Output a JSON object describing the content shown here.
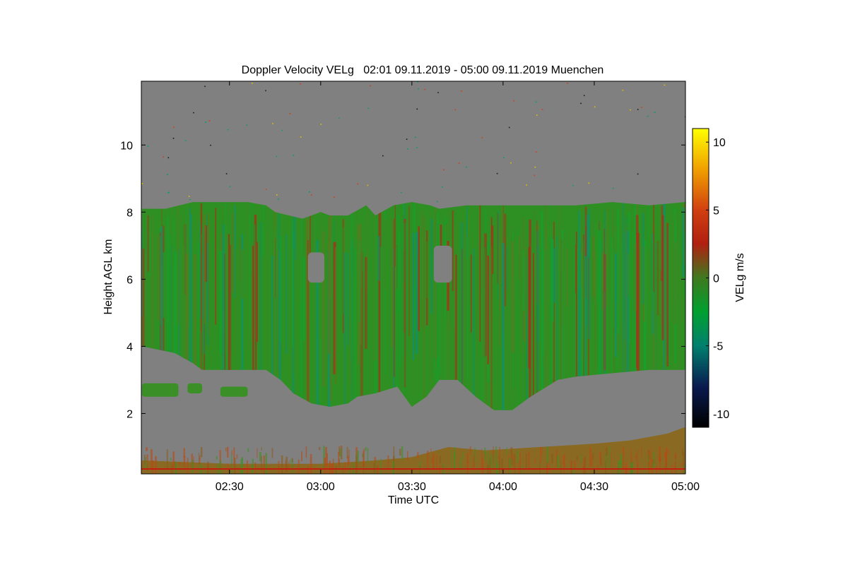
{
  "chart_data": {
    "type": "heatmap",
    "title": "Doppler Velocity VELg   02:01 09.11.2019 - 05:00 09.11.2019 Muenchen",
    "xlabel": "Time UTC",
    "ylabel": "Height AGL km",
    "xlim_hours": [
      2.0167,
      5.0
    ],
    "ylim_km": [
      0.2,
      11.9
    ],
    "x_ticks": [
      {
        "value": 2.5,
        "label": "02:30"
      },
      {
        "value": 3.0,
        "label": "03:00"
      },
      {
        "value": 3.5,
        "label": "03:30"
      },
      {
        "value": 4.0,
        "label": "04:00"
      },
      {
        "value": 4.5,
        "label": "04:30"
      },
      {
        "value": 5.0,
        "label": "05:00"
      }
    ],
    "y_ticks": [
      {
        "value": 2,
        "label": "2"
      },
      {
        "value": 4,
        "label": "4"
      },
      {
        "value": 6,
        "label": "6"
      },
      {
        "value": 8,
        "label": "8"
      },
      {
        "value": 10,
        "label": "10"
      }
    ],
    "background_color": "#808080",
    "colorbar": {
      "label": "VELg m/s",
      "range": [
        -11,
        11
      ],
      "ticks": [
        {
          "value": 10,
          "label": "10"
        },
        {
          "value": 5,
          "label": "5"
        },
        {
          "value": 0,
          "label": "0"
        },
        {
          "value": -5,
          "label": "-5"
        },
        {
          "value": -10,
          "label": "-10"
        }
      ],
      "stops": [
        {
          "value": -11,
          "color": "#000000"
        },
        {
          "value": -8,
          "color": "#0a1a50"
        },
        {
          "value": -5,
          "color": "#00806e"
        },
        {
          "value": -2.5,
          "color": "#00a030"
        },
        {
          "value": 0,
          "color": "#3f7a1e"
        },
        {
          "value": 2.5,
          "color": "#b02010"
        },
        {
          "value": 5,
          "color": "#d04010"
        },
        {
          "value": 8,
          "color": "#f0a000"
        },
        {
          "value": 11,
          "color": "#ffff00"
        }
      ]
    },
    "cloud_top_km": [
      [
        2.02,
        8.1
      ],
      [
        2.15,
        8.1
      ],
      [
        2.3,
        8.3
      ],
      [
        2.4,
        8.3
      ],
      [
        2.5,
        8.3
      ],
      [
        2.6,
        8.3
      ],
      [
        2.7,
        8.2
      ],
      [
        2.75,
        8.0
      ],
      [
        2.9,
        7.8
      ],
      [
        3.0,
        8.0
      ],
      [
        3.05,
        7.9
      ],
      [
        3.15,
        7.9
      ],
      [
        3.25,
        8.2
      ],
      [
        3.3,
        7.9
      ],
      [
        3.4,
        8.2
      ],
      [
        3.5,
        8.3
      ],
      [
        3.6,
        8.2
      ],
      [
        3.65,
        8.1
      ],
      [
        3.8,
        8.2
      ],
      [
        4.0,
        8.2
      ],
      [
        4.2,
        8.2
      ],
      [
        4.4,
        8.2
      ],
      [
        4.6,
        8.3
      ],
      [
        4.8,
        8.2
      ],
      [
        5.0,
        8.3
      ]
    ],
    "cloud_base_km": [
      [
        2.02,
        4.0
      ],
      [
        2.2,
        3.8
      ],
      [
        2.3,
        3.5
      ],
      [
        2.35,
        3.3
      ],
      [
        2.5,
        3.3
      ],
      [
        2.7,
        3.3
      ],
      [
        2.78,
        3.0
      ],
      [
        2.85,
        2.6
      ],
      [
        2.95,
        2.3
      ],
      [
        3.05,
        2.2
      ],
      [
        3.15,
        2.3
      ],
      [
        3.2,
        2.5
      ],
      [
        3.3,
        2.6
      ],
      [
        3.42,
        2.8
      ],
      [
        3.5,
        2.2
      ],
      [
        3.58,
        2.5
      ],
      [
        3.65,
        3.0
      ],
      [
        3.75,
        3.0
      ],
      [
        3.85,
        2.5
      ],
      [
        3.95,
        2.1
      ],
      [
        4.05,
        2.1
      ],
      [
        4.15,
        2.5
      ],
      [
        4.3,
        3.0
      ],
      [
        4.4,
        3.1
      ],
      [
        4.6,
        3.2
      ],
      [
        4.8,
        3.3
      ],
      [
        5.0,
        3.3
      ]
    ],
    "low_layer_top_km": [
      [
        2.02,
        0.6
      ],
      [
        2.5,
        0.5
      ],
      [
        3.0,
        0.5
      ],
      [
        3.3,
        0.6
      ],
      [
        3.5,
        0.7
      ],
      [
        3.7,
        1.0
      ],
      [
        3.9,
        0.9
      ],
      [
        4.2,
        1.0
      ],
      [
        4.5,
        1.1
      ],
      [
        4.7,
        1.2
      ],
      [
        4.9,
        1.4
      ],
      [
        5.0,
        1.6
      ]
    ],
    "gaps": [
      {
        "x": [
          2.93,
          3.02
        ],
        "y": [
          5.9,
          6.8
        ]
      },
      {
        "x": [
          3.62,
          3.72
        ],
        "y": [
          5.9,
          7.0
        ]
      }
    ],
    "detached_patches": [
      {
        "x": [
          2.02,
          2.22
        ],
        "y": [
          2.5,
          2.9
        ]
      },
      {
        "x": [
          2.27,
          2.35
        ],
        "y": [
          2.6,
          2.9
        ]
      },
      {
        "x": [
          2.45,
          2.6
        ],
        "y": [
          2.5,
          2.8
        ]
      }
    ]
  }
}
